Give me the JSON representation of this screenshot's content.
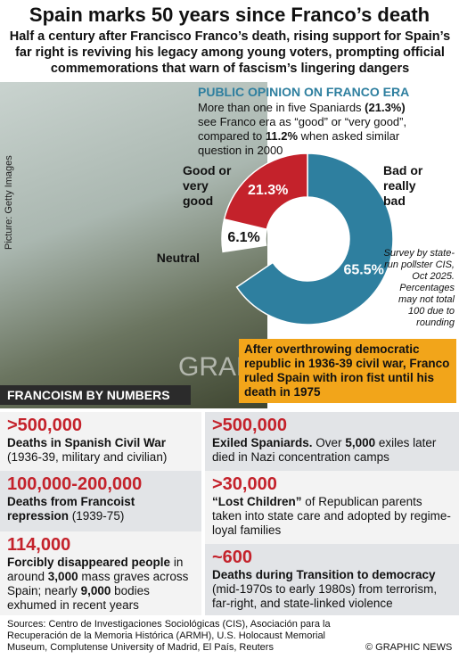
{
  "header": {
    "title": "Spain marks 50 years since Franco’s death",
    "subtitle": "Half a century after Francisco Franco’s death, rising support for Spain’s far right is reviving his legacy among young voters, prompting official commemorations that warn of fascism’s lingering dangers"
  },
  "photo_credit": "Picture: Getty Images",
  "watermark": "GRAPHIC NEWS",
  "chart_data": {
    "type": "donut",
    "title": "PUBLIC OPINION ON FRANCO ERA",
    "intro": [
      "More than one in five Spaniards ",
      "(21.3%)",
      " see Franco era as “good” or “very good”, compared to ",
      "11.2%",
      " when asked similar question in 2000"
    ],
    "categories": [
      "Bad or really bad",
      "Neutral",
      "Good or very good"
    ],
    "values": [
      65.5,
      6.1,
      21.3
    ],
    "value_labels": [
      "65.5%",
      "6.1%",
      "21.3%"
    ],
    "colors": [
      "#2e7f9f",
      "#ffffff",
      "#c4222b"
    ],
    "note": "Survey by state-run pollster CIS, Oct 2025. Percentages may not total 100 due to rounding"
  },
  "callout": "After overthrowing democratic republic in 1936-39 civil war, Franco ruled Spain with iron fist until his death in 1975",
  "section": "FRANCOISM BY NUMBERS",
  "stats": [
    {
      "figure": ">500,000",
      "runs": [
        "Deaths in Spanish Civil War",
        " (1936-39, military and civilian)"
      ]
    },
    {
      "figure": "100,000-200,000",
      "runs": [
        "Deaths from Francoist repression",
        " (1939-75)"
      ]
    },
    {
      "figure": "114,000",
      "runs": [
        "Forcibly disappeared people",
        " in around ",
        "3,000",
        " mass graves across Spain; nearly ",
        "9,000",
        " bodies exhumed in recent years"
      ]
    },
    {
      "figure": ">500,000",
      "runs": [
        "Exiled Spaniards.",
        " Over ",
        "5,000",
        " exiles later died in Nazi concentration camps"
      ]
    },
    {
      "figure": ">30,000",
      "runs": [
        "“Lost Children”",
        " of Republican parents taken into state care and adopted by regime-loyal families"
      ]
    },
    {
      "figure": "~600",
      "runs": [
        "Deaths during Transition to democracy",
        " (mid-1970s to early 1980s) from terrorism, far-right, and state-linked violence"
      ]
    }
  ],
  "footer": {
    "sources": "Sources: Centro de Investigaciones Sociológicas (CIS), Asociación para la Recuperación de la Memoria Histórica (ARMH), U.S. Holocaust Memorial Museum, Complutense University of Madrid, El País, Reuters",
    "copyright": "© GRAPHIC NEWS"
  }
}
